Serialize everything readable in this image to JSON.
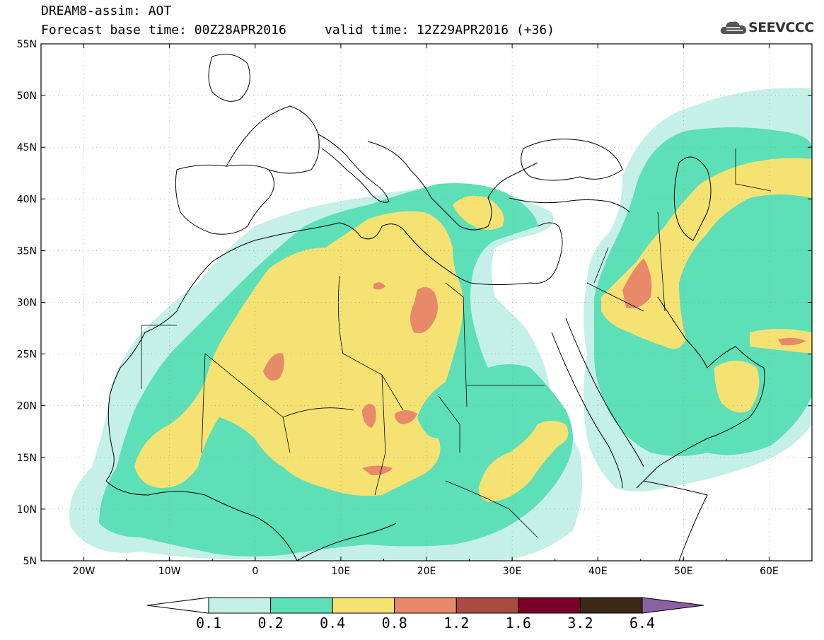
{
  "header": {
    "title_line1": "DREAM8-assim: AOT",
    "title_line2": "Forecast base time: 00Z28APR2016     valid time: 12Z29APR2016 (+36)",
    "logo_text": "SEEVCCC"
  },
  "map": {
    "lon_range": [
      -25,
      65
    ],
    "lat_range": [
      5,
      55
    ],
    "lon_ticks": [
      {
        "lon": -20,
        "label": "20W"
      },
      {
        "lon": -10,
        "label": "10W"
      },
      {
        "lon": 0,
        "label": "0"
      },
      {
        "lon": 10,
        "label": "10E"
      },
      {
        "lon": 20,
        "label": "20E"
      },
      {
        "lon": 30,
        "label": "30E"
      },
      {
        "lon": 40,
        "label": "40E"
      },
      {
        "lon": 50,
        "label": "50E"
      },
      {
        "lon": 60,
        "label": "60E"
      }
    ],
    "lat_ticks": [
      {
        "lat": 55,
        "label": "55N"
      },
      {
        "lat": 50,
        "label": "50N"
      },
      {
        "lat": 45,
        "label": "45N"
      },
      {
        "lat": 40,
        "label": "40N"
      },
      {
        "lat": 35,
        "label": "35N"
      },
      {
        "lat": 30,
        "label": "30N"
      },
      {
        "lat": 25,
        "label": "25N"
      },
      {
        "lat": 20,
        "label": "20N"
      },
      {
        "lat": 15,
        "label": "15N"
      },
      {
        "lat": 10,
        "label": "10N"
      },
      {
        "lat": 5,
        "label": "5N"
      }
    ],
    "grid": true
  },
  "colorbar": {
    "labels": [
      "0.1",
      "0.2",
      "0.4",
      "0.8",
      "1.2",
      "1.6",
      "3.2",
      "6.4"
    ],
    "colors": [
      "#c4f0e8",
      "#5ddfb8",
      "#f6e273",
      "#e8896a",
      "#a94b3f",
      "#7a0028",
      "#3b2816"
    ],
    "under_color": "#ffffff",
    "over_color": "#8a62a4"
  },
  "legend_colors": {
    "ocean": "#ffffff",
    "coast": "#000000"
  }
}
